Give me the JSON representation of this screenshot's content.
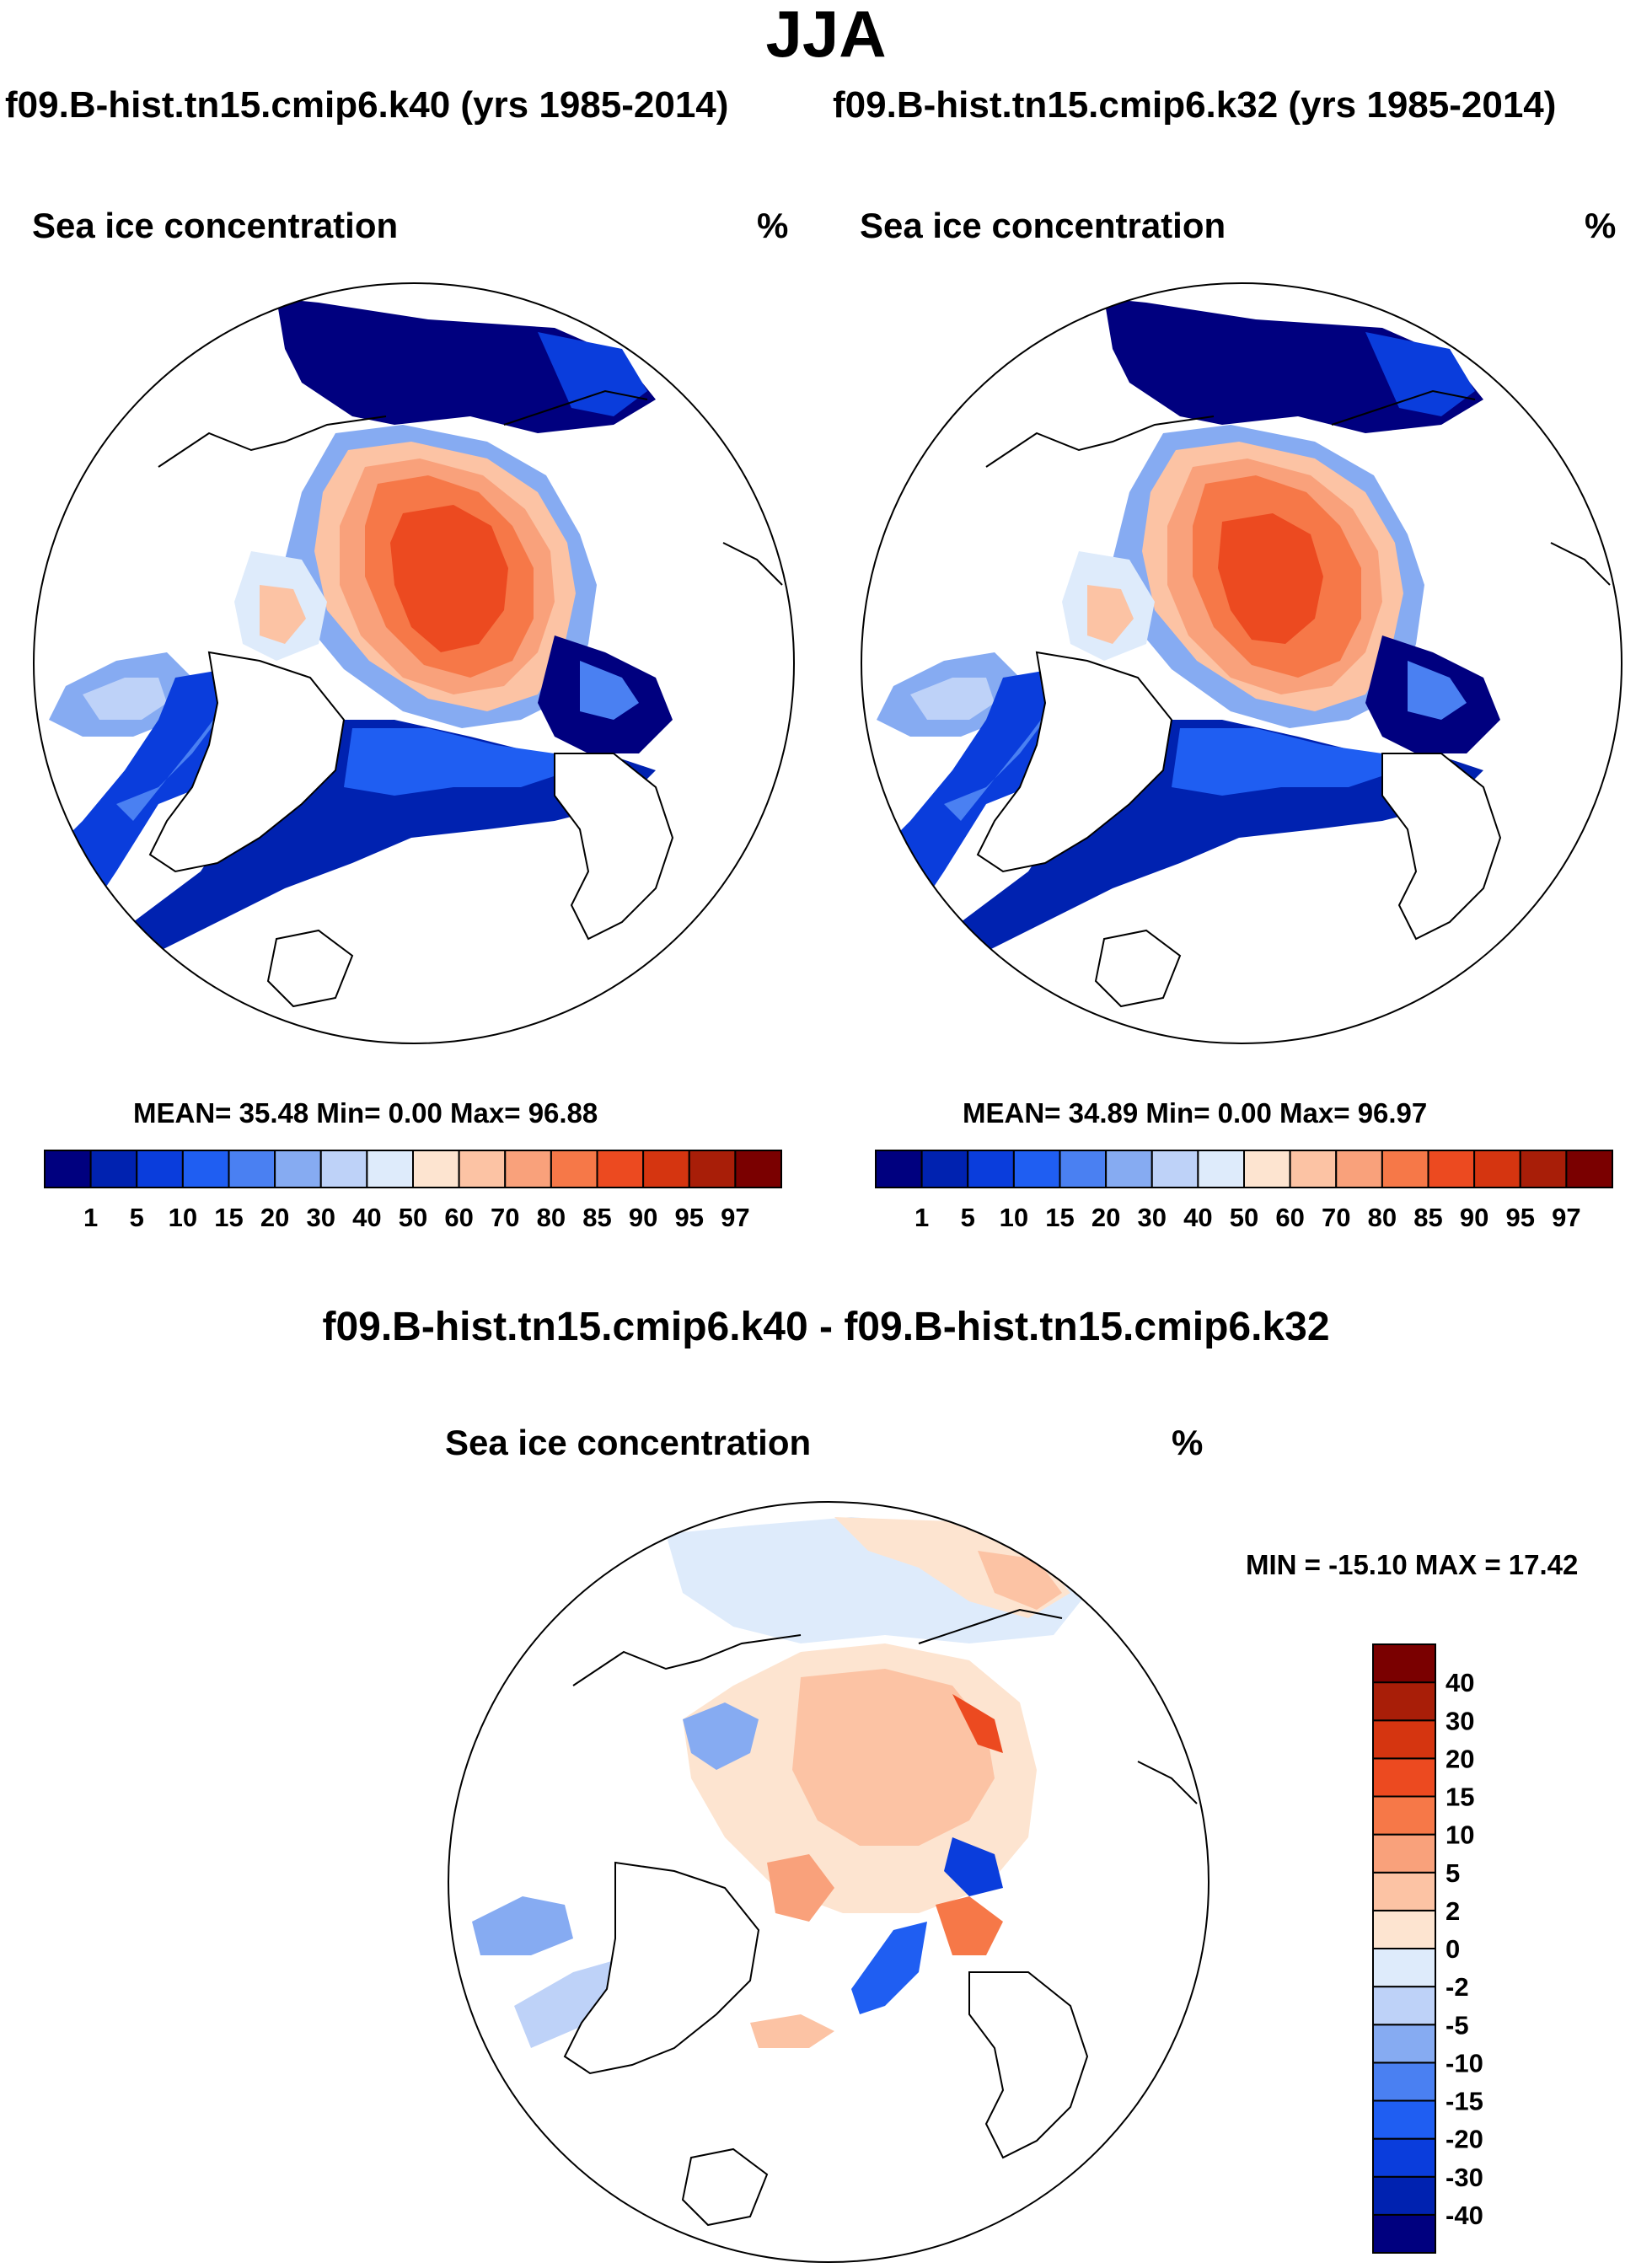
{
  "figure_title": "JJA",
  "panels": [
    {
      "case_title": "f09.B-hist.tn15.cmip6.k40 (yrs 1985-2014)",
      "field": "Sea ice concentration",
      "units": "%",
      "stats": {
        "mean_label": "MEAN=",
        "mean": "35.48",
        "min_label": "Min=",
        "min": "0.00",
        "max_label": "Max=",
        "max": "96.88"
      }
    },
    {
      "case_title": "f09.B-hist.tn15.cmip6.k32 (yrs 1985-2014)",
      "field": "Sea ice concentration",
      "units": "%",
      "stats": {
        "mean_label": "MEAN=",
        "mean": "34.89",
        "min_label": "Min=",
        "min": "0.00",
        "max_label": "Max=",
        "max": "96.97"
      }
    }
  ],
  "difference": {
    "title": "f09.B-hist.tn15.cmip6.k40 - f09.B-hist.tn15.cmip6.k32",
    "field": "Sea ice concentration",
    "units": "%",
    "minmax_text": "MIN = -15.10 MAX =  17.42"
  },
  "chart_data": [
    {
      "type": "heatmap",
      "projection": "north-polar-stereographic",
      "title": "Sea ice concentration",
      "units": "%",
      "case": "f09.B-hist.tn15.cmip6.k40 (yrs 1985-2014)",
      "mean": 35.48,
      "min": 0.0,
      "max": 96.88,
      "colorbar": {
        "orientation": "horizontal",
        "levels": [
          1,
          5,
          10,
          15,
          20,
          30,
          40,
          50,
          60,
          70,
          80,
          85,
          90,
          95,
          97
        ],
        "tick_labels": [
          "1",
          "5",
          "10",
          "15",
          "20",
          "30",
          "40",
          "50",
          "60",
          "70",
          "80",
          "85",
          "90",
          "95",
          "97"
        ],
        "colors": [
          "#00007f",
          "#0022b0",
          "#0a3ddc",
          "#1f5ef2",
          "#4a80f2",
          "#86abf2",
          "#bed2f8",
          "#deebfb",
          "#fde4d0",
          "#fcc3a4",
          "#f9a17b",
          "#f67848",
          "#ec4a20",
          "#d53510",
          "#a81e08",
          "#7a0000"
        ]
      }
    },
    {
      "type": "heatmap",
      "projection": "north-polar-stereographic",
      "title": "Sea ice concentration",
      "units": "%",
      "case": "f09.B-hist.tn15.cmip6.k32 (yrs 1985-2014)",
      "mean": 34.89,
      "min": 0.0,
      "max": 96.97,
      "colorbar": {
        "orientation": "horizontal",
        "levels": [
          1,
          5,
          10,
          15,
          20,
          30,
          40,
          50,
          60,
          70,
          80,
          85,
          90,
          95,
          97
        ],
        "tick_labels": [
          "1",
          "5",
          "10",
          "15",
          "20",
          "30",
          "40",
          "50",
          "60",
          "70",
          "80",
          "85",
          "90",
          "95",
          "97"
        ],
        "colors": [
          "#00007f",
          "#0022b0",
          "#0a3ddc",
          "#1f5ef2",
          "#4a80f2",
          "#86abf2",
          "#bed2f8",
          "#deebfb",
          "#fde4d0",
          "#fcc3a4",
          "#f9a17b",
          "#f67848",
          "#ec4a20",
          "#d53510",
          "#a81e08",
          "#7a0000"
        ]
      }
    },
    {
      "type": "heatmap",
      "projection": "north-polar-stereographic",
      "title": "Sea ice concentration",
      "units": "%",
      "case": "f09.B-hist.tn15.cmip6.k40 - f09.B-hist.tn15.cmip6.k32",
      "min": -15.1,
      "max": 17.42,
      "colorbar": {
        "orientation": "vertical",
        "levels": [
          -40,
          -30,
          -20,
          -15,
          -10,
          -5,
          -2,
          0,
          2,
          5,
          10,
          15,
          20,
          30,
          40
        ],
        "tick_labels": [
          "-40",
          "-30",
          "-20",
          "-15",
          "-10",
          "-5",
          "-2",
          "0",
          "2",
          "5",
          "10",
          "15",
          "20",
          "30",
          "40"
        ],
        "colors": [
          "#00007f",
          "#0022b0",
          "#0a3ddc",
          "#1f5ef2",
          "#4a80f2",
          "#86abf2",
          "#bed2f8",
          "#deebfb",
          "#fde4d0",
          "#fcc3a4",
          "#f9a17b",
          "#f67848",
          "#ec4a20",
          "#d53510",
          "#a81e08",
          "#7a0000"
        ]
      }
    }
  ]
}
